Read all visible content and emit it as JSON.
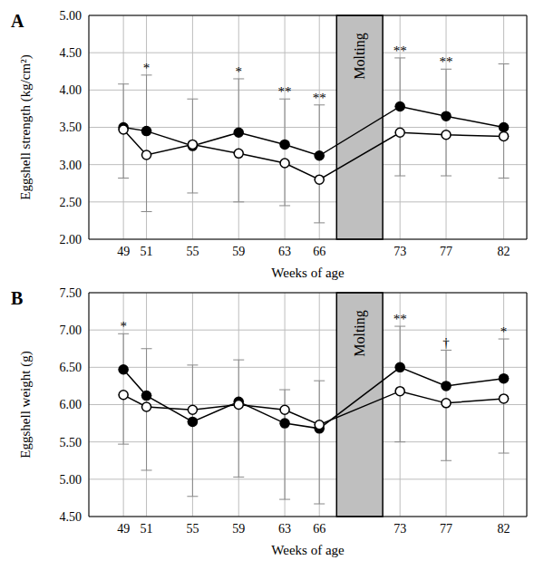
{
  "chart_data": [
    {
      "type": "line",
      "title": "A",
      "x_label": "Weeks of age",
      "y_label": "Eggshell strength (kg/cm²)",
      "x": [
        49,
        51,
        55,
        59,
        63,
        66,
        73,
        77,
        82
      ],
      "xlim": [
        46,
        84
      ],
      "xticks": [
        49,
        51,
        55,
        59,
        63,
        66,
        73,
        77,
        82
      ],
      "ylim": [
        2,
        5
      ],
      "yticks": [
        {
          "value": 2,
          "label": "2.00"
        },
        {
          "value": 2.5,
          "label": "2.50"
        },
        {
          "value": 3,
          "label": "3.00"
        },
        {
          "value": 3.5,
          "label": "3.50"
        },
        {
          "value": 4,
          "label": "4.00"
        },
        {
          "value": 4.5,
          "label": "4.50"
        },
        {
          "value": 5,
          "label": "5.00"
        }
      ],
      "grid": true,
      "series": [
        {
          "color": "#000000",
          "marker": "filled_circle",
          "values": [
            3.5,
            3.45,
            3.25,
            3.43,
            3.27,
            3.12,
            3.78,
            3.65,
            3.5
          ],
          "errors": [
            0.58,
            0.75,
            0.63,
            0.72,
            0.61,
            0.68,
            0.65,
            0.63,
            0.85
          ]
        },
        {
          "color": "#000000",
          "marker": "open_circle",
          "values": [
            3.47,
            3.13,
            3.27,
            3.15,
            3.02,
            2.8,
            3.43,
            3.4,
            3.38
          ],
          "errors": [
            0.65,
            0.76,
            0.65,
            0.65,
            0.57,
            0.58,
            0.58,
            0.55,
            0.56
          ]
        }
      ],
      "shaded_region": {
        "x": [
          67.5,
          71.5
        ],
        "label": "Molting"
      },
      "annotations": [
        {
          "x": 51,
          "text": "*"
        },
        {
          "x": 59,
          "text": "*"
        },
        {
          "x": 63,
          "text": "**"
        },
        {
          "x": 66,
          "text": "**"
        },
        {
          "x": 73,
          "text": "**"
        },
        {
          "x": 77,
          "text": "**"
        }
      ]
    },
    {
      "type": "line",
      "title": "B",
      "x_label": "Weeks of age",
      "y_label": "Eggshell weight (g)",
      "x": [
        49,
        51,
        55,
        59,
        63,
        66,
        73,
        77,
        82
      ],
      "xlim": [
        46,
        84
      ],
      "xticks": [
        49,
        51,
        55,
        59,
        63,
        66,
        73,
        77,
        82
      ],
      "ylim": [
        4.5,
        7.5
      ],
      "yticks": [
        {
          "value": 4.5,
          "label": "4.50"
        },
        {
          "value": 5,
          "label": "5.00"
        },
        {
          "value": 5.5,
          "label": "5.50"
        },
        {
          "value": 6,
          "label": "6.00"
        },
        {
          "value": 6.5,
          "label": "6.50"
        },
        {
          "value": 7,
          "label": "7.00"
        },
        {
          "value": 7.5,
          "label": "7.50"
        }
      ],
      "grid": true,
      "series": [
        {
          "color": "#000000",
          "marker": "filled_circle",
          "values": [
            6.47,
            6.12,
            5.77,
            6.04,
            5.75,
            5.68,
            6.5,
            6.25,
            6.35
          ],
          "errors": [
            0.48,
            0.63,
            0.76,
            0.56,
            0.45,
            0.64,
            0.55,
            0.48,
            0.53
          ]
        },
        {
          "color": "#000000",
          "marker": "open_circle",
          "values": [
            6.13,
            5.97,
            5.93,
            6.0,
            5.93,
            5.73,
            6.18,
            6.02,
            6.08
          ],
          "errors": [
            0.66,
            0.85,
            1.16,
            0.97,
            1.2,
            1.06,
            0.68,
            0.77,
            0.73
          ]
        }
      ],
      "shaded_region": {
        "x": [
          67.5,
          71.5
        ],
        "label": "Molting"
      },
      "annotations": [
        {
          "x": 49,
          "text": "*"
        },
        {
          "x": 73,
          "text": "**"
        },
        {
          "x": 77,
          "text": "†"
        },
        {
          "x": 82,
          "text": "*"
        }
      ]
    }
  ]
}
